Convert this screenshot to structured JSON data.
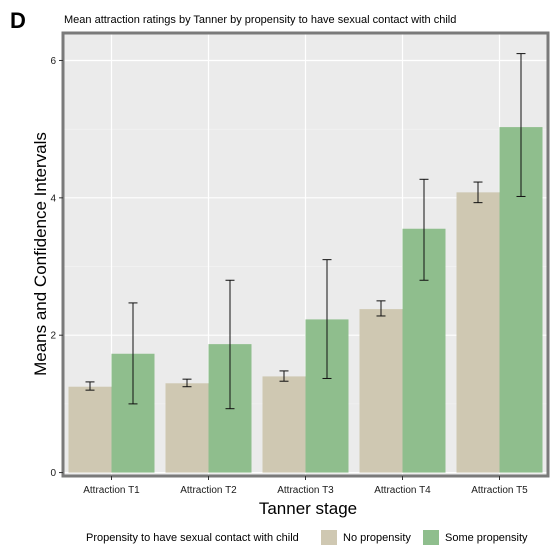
{
  "panel_label": "D",
  "chart_data": {
    "type": "bar",
    "title": "Mean attraction ratings by Tanner by propensity to have sexual contact with child",
    "xlabel": "Tanner stage",
    "ylabel": "Means and Confidence Intervals",
    "categories": [
      "Attraction T1",
      "Attraction T2",
      "Attraction T3",
      "Attraction T4",
      "Attraction T5"
    ],
    "series": [
      {
        "name": "No propensity",
        "color": "#cfc8b2",
        "values": [
          1.25,
          1.3,
          1.4,
          2.38,
          4.08
        ],
        "ci_low": [
          1.2,
          1.25,
          1.33,
          2.28,
          3.93
        ],
        "ci_high": [
          1.32,
          1.36,
          1.48,
          2.5,
          4.23
        ]
      },
      {
        "name": "Some propensity",
        "color": "#8fbe8d",
        "values": [
          1.73,
          1.87,
          2.23,
          3.55,
          5.03
        ],
        "ci_low": [
          1.0,
          0.93,
          1.37,
          2.8,
          4.02
        ],
        "ci_high": [
          2.47,
          2.8,
          3.1,
          4.27,
          6.1
        ]
      }
    ],
    "ylim": [
      -0.05,
      6.4
    ],
    "yticks": [
      0,
      2,
      4,
      6
    ],
    "grid": true,
    "legend": {
      "title": "Propensity to have sexual contact with child",
      "position": "bottom"
    }
  }
}
